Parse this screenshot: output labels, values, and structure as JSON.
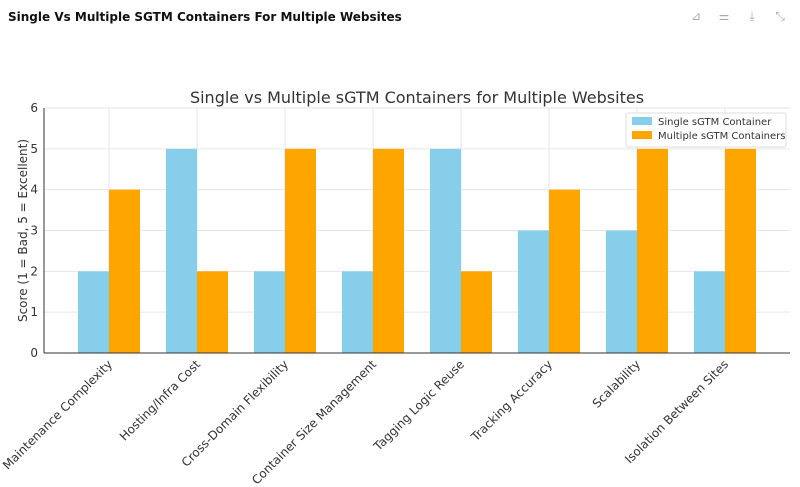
{
  "header": {
    "title": "Single Vs Multiple SGTM Containers For Multiple Websites",
    "icons": [
      "pin-off-icon",
      "sliders-icon",
      "download-icon",
      "collapse-icon"
    ]
  },
  "chart_data": {
    "type": "bar",
    "title": "Single vs Multiple sGTM Containers for Multiple Websites",
    "xlabel": "",
    "ylabel": "Score (1 = Bad, 5 = Excellent)",
    "ylim": [
      0,
      6
    ],
    "yticks": [
      "0",
      "1",
      "2",
      "3",
      "4",
      "5",
      "6"
    ],
    "grid": true,
    "legend": "top-right",
    "categories": [
      "Maintenance Complexity",
      "Hosting/Infra Cost",
      "Cross-Domain Flexibility",
      "Container Size Management",
      "Tagging Logic Reuse",
      "Tracking Accuracy",
      "Scalability",
      "Isolation Between Sites"
    ],
    "series": [
      {
        "name": "Single sGTM Container",
        "color": "#87ceeb",
        "values": [
          2,
          5,
          2,
          2,
          5,
          3,
          3,
          2
        ]
      },
      {
        "name": "Multiple sGTM Containers",
        "color": "#ffa500",
        "values": [
          4,
          2,
          5,
          5,
          2,
          4,
          5,
          5
        ]
      }
    ]
  }
}
